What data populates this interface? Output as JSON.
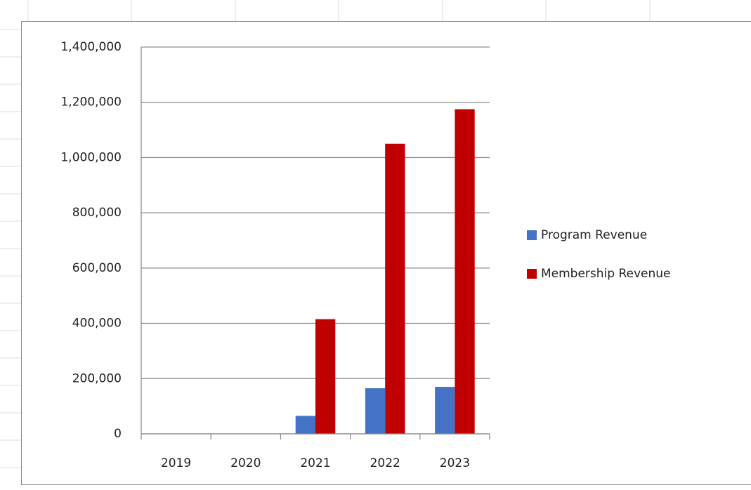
{
  "chart_data": {
    "type": "bar",
    "categories": [
      "2019",
      "2020",
      "2021",
      "2022",
      "2023"
    ],
    "series": [
      {
        "name": "Program Revenue",
        "color": "#4472c4",
        "values": [
          0,
          0,
          65000,
          165000,
          170000
        ]
      },
      {
        "name": "Membership Revenue",
        "color": "#c00000",
        "values": [
          0,
          0,
          415000,
          1050000,
          1175000
        ]
      }
    ],
    "ylim": [
      0,
      1400000
    ],
    "yticks": [
      0,
      {
        "value": 200000,
        "label": "200,000"
      },
      {
        "value": 400000,
        "label": "400,000"
      },
      {
        "value": 600000,
        "label": "600,000"
      },
      {
        "value": 800000,
        "label": "800,000"
      },
      {
        "value": 1000000,
        "label": "1,000,000"
      },
      {
        "value": 1200000,
        "label": "1,200,000"
      },
      {
        "value": 1400000,
        "label": "1,400,000"
      }
    ],
    "grid": true,
    "legend": "right"
  }
}
